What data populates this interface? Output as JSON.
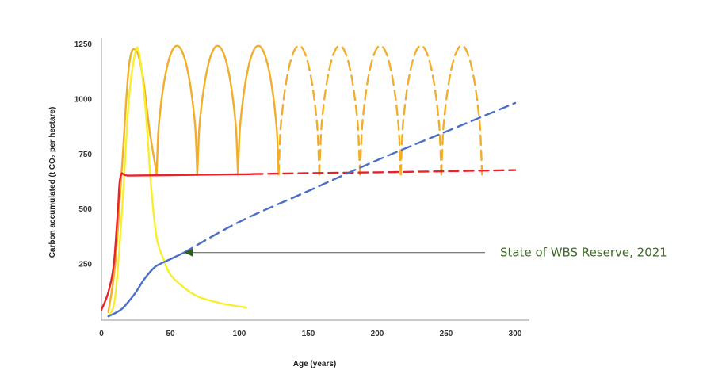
{
  "chart_data": {
    "type": "line",
    "title": "",
    "xlabel": "Age (years)",
    "ylabel": "Carbon accumulated (t CO₂ per hectare)",
    "xlim": [
      0,
      300
    ],
    "ylim": [
      0,
      1250
    ],
    "x_ticks": [
      "0",
      "50",
      "100",
      "150",
      "200",
      "250",
      "300"
    ],
    "y_ticks": [
      "250",
      "500",
      "750",
      "1000",
      "1250"
    ],
    "grid": false,
    "legend": "none",
    "series": [
      {
        "color": "#e8232a",
        "style": "solid-then-dashed",
        "dashed_from_x": 110,
        "x": [
          0,
          5,
          9,
          12,
          14,
          20,
          50,
          100,
          110,
          150,
          200,
          250,
          300
        ],
        "y": [
          40,
          120,
          250,
          500,
          650,
          650,
          652,
          656,
          657,
          661,
          665,
          670,
          675
        ]
      },
      {
        "color": "#f7ef2c",
        "style": "solid",
        "x": [
          5,
          10,
          15,
          20,
          25,
          28,
          32,
          36,
          40,
          45,
          50,
          60,
          70,
          80,
          90,
          100,
          105
        ],
        "y": [
          10,
          100,
          500,
          1000,
          1220,
          1180,
          950,
          600,
          370,
          270,
          200,
          140,
          100,
          80,
          65,
          55,
          50
        ]
      },
      {
        "color": "#f2ad2a",
        "style": "solid-then-dashed",
        "dashed_from_x": 105,
        "cycle_start_x": 40,
        "cycle_length": 29.5,
        "trough": 655,
        "peak": 1240,
        "first_cycle": {
          "x": [
            5,
            10,
            15,
            20,
            25,
            30,
            35,
            40
          ],
          "y": [
            30,
            250,
            700,
            1150,
            1220,
            1100,
            850,
            660
          ]
        },
        "x": [
          5,
          10,
          15,
          20,
          25,
          30,
          35,
          40,
          300
        ],
        "y": [
          30,
          250,
          700,
          1150,
          1220,
          1100,
          850,
          660,
          660
        ]
      },
      {
        "color": "#4a6fc9",
        "style": "solid-then-dashed",
        "dashed_from_x": 60,
        "x": [
          5,
          10,
          15,
          20,
          25,
          30,
          35,
          40,
          50,
          60,
          100,
          150,
          200,
          250,
          300
        ],
        "y": [
          10,
          25,
          45,
          80,
          120,
          170,
          210,
          240,
          270,
          300,
          440,
          580,
          720,
          850,
          980
        ]
      }
    ],
    "annotations": [
      {
        "text": "State of WBS Reserve, 2021",
        "x": 60,
        "y": 300,
        "color": "#3f6b26",
        "arrow": true
      }
    ]
  }
}
